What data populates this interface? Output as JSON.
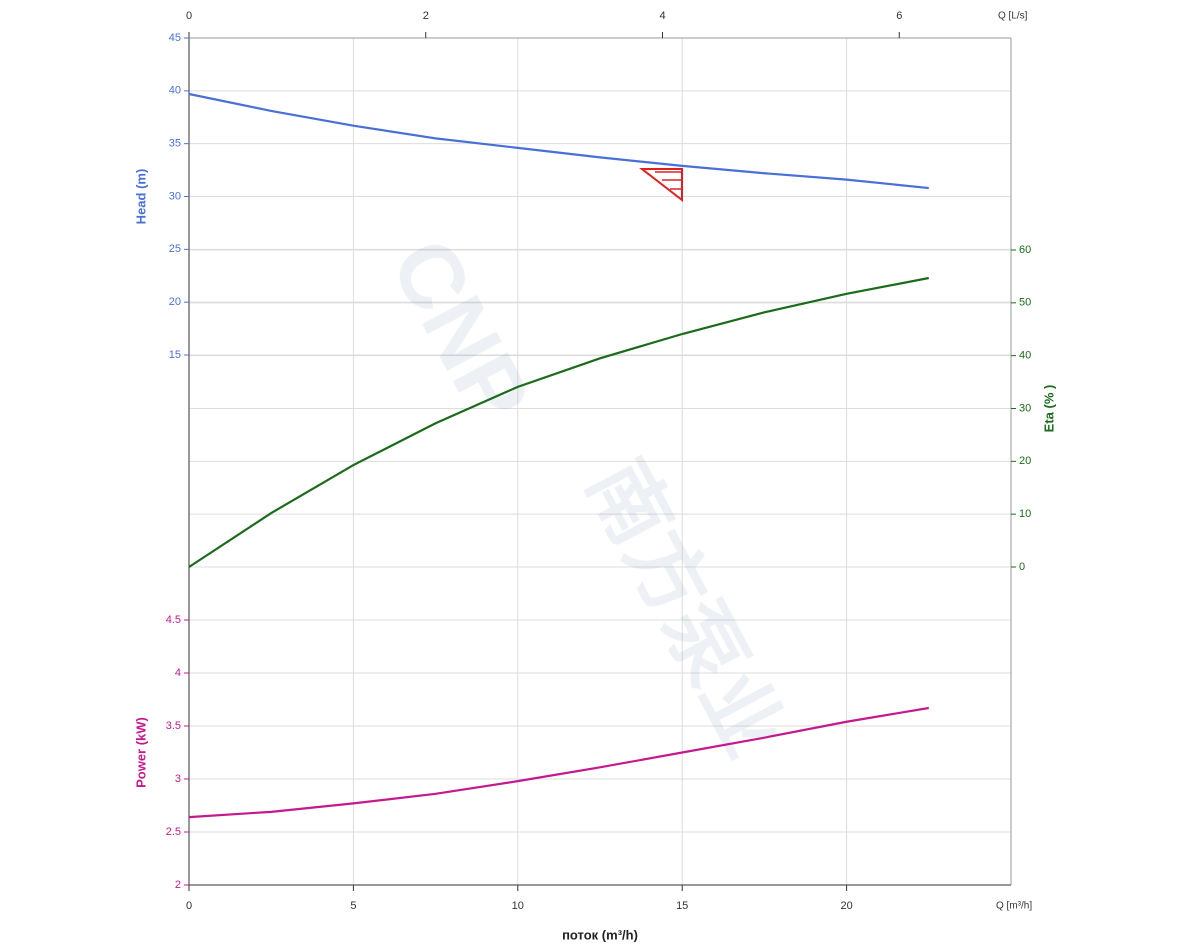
{
  "chart_data": {
    "type": "line",
    "x_label": "поток (m³/h)",
    "x_unit_label": "Q [m³/h]",
    "x2_unit_label": "Q [L/s]",
    "watermark": [
      "CNP",
      "南方泵业"
    ],
    "xlim": [
      0,
      25
    ],
    "xticks": [
      0,
      5,
      10,
      15,
      20
    ],
    "x2lim": [
      0,
      6.944
    ],
    "x2ticks": [
      0,
      2,
      4,
      6
    ],
    "x": [
      0,
      2.5,
      5,
      7.5,
      10,
      12.5,
      15,
      17.5,
      20,
      22.5
    ],
    "grid": true,
    "panels": [
      {
        "name": "Head (m)",
        "color": "#4a70d6",
        "ylim": [
          15,
          45
        ],
        "yticks": [
          15,
          20,
          25,
          30,
          35,
          40,
          45
        ],
        "side": "left",
        "values": [
          39.7,
          38.1,
          36.7,
          35.5,
          34.6,
          33.7,
          32.9,
          32.2,
          31.6,
          30.8
        ]
      },
      {
        "name": "Eta (% )",
        "color": "#1a6b1a",
        "ylim": [
          0,
          60
        ],
        "yticks": [
          0,
          10,
          20,
          30,
          40,
          50,
          60
        ],
        "side": "right",
        "values": [
          0,
          10.2,
          19.3,
          27.2,
          34.1,
          39.5,
          44.1,
          48.2,
          51.7,
          54.7
        ]
      },
      {
        "name": "Power (kW)",
        "color": "#c4198f",
        "ylim": [
          2,
          4.5
        ],
        "yticks": [
          2,
          2.5,
          3,
          3.5,
          4,
          4.5
        ],
        "side": "left",
        "values": [
          2.64,
          2.69,
          2.77,
          2.86,
          2.98,
          3.11,
          3.25,
          3.39,
          3.54,
          3.67
        ]
      }
    ]
  }
}
